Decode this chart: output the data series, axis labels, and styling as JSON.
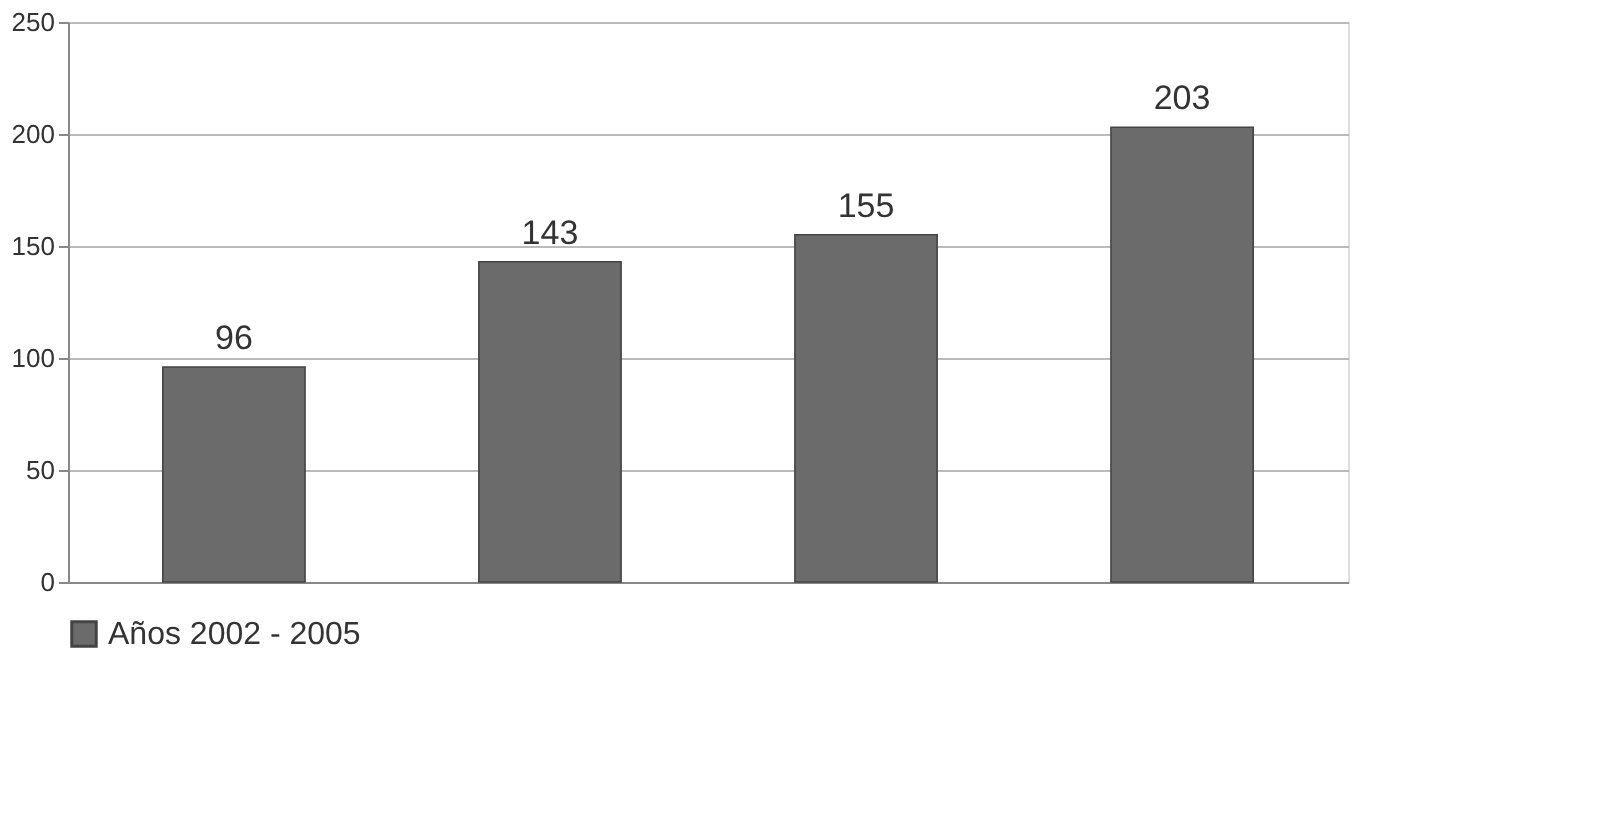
{
  "chart_data": {
    "type": "bar",
    "categories": [
      null,
      null,
      null,
      null
    ],
    "series": [
      {
        "name": "Años 2002 - 2005",
        "color": "#6b6b6b",
        "values": [
          96,
          143,
          155,
          203
        ]
      }
    ],
    "ylim": [
      0,
      250
    ],
    "yticks": [
      0,
      50,
      100,
      150,
      200,
      250
    ],
    "grid": "y",
    "legend": "bottom",
    "data_labels": true,
    "tick_labels": "y"
  }
}
